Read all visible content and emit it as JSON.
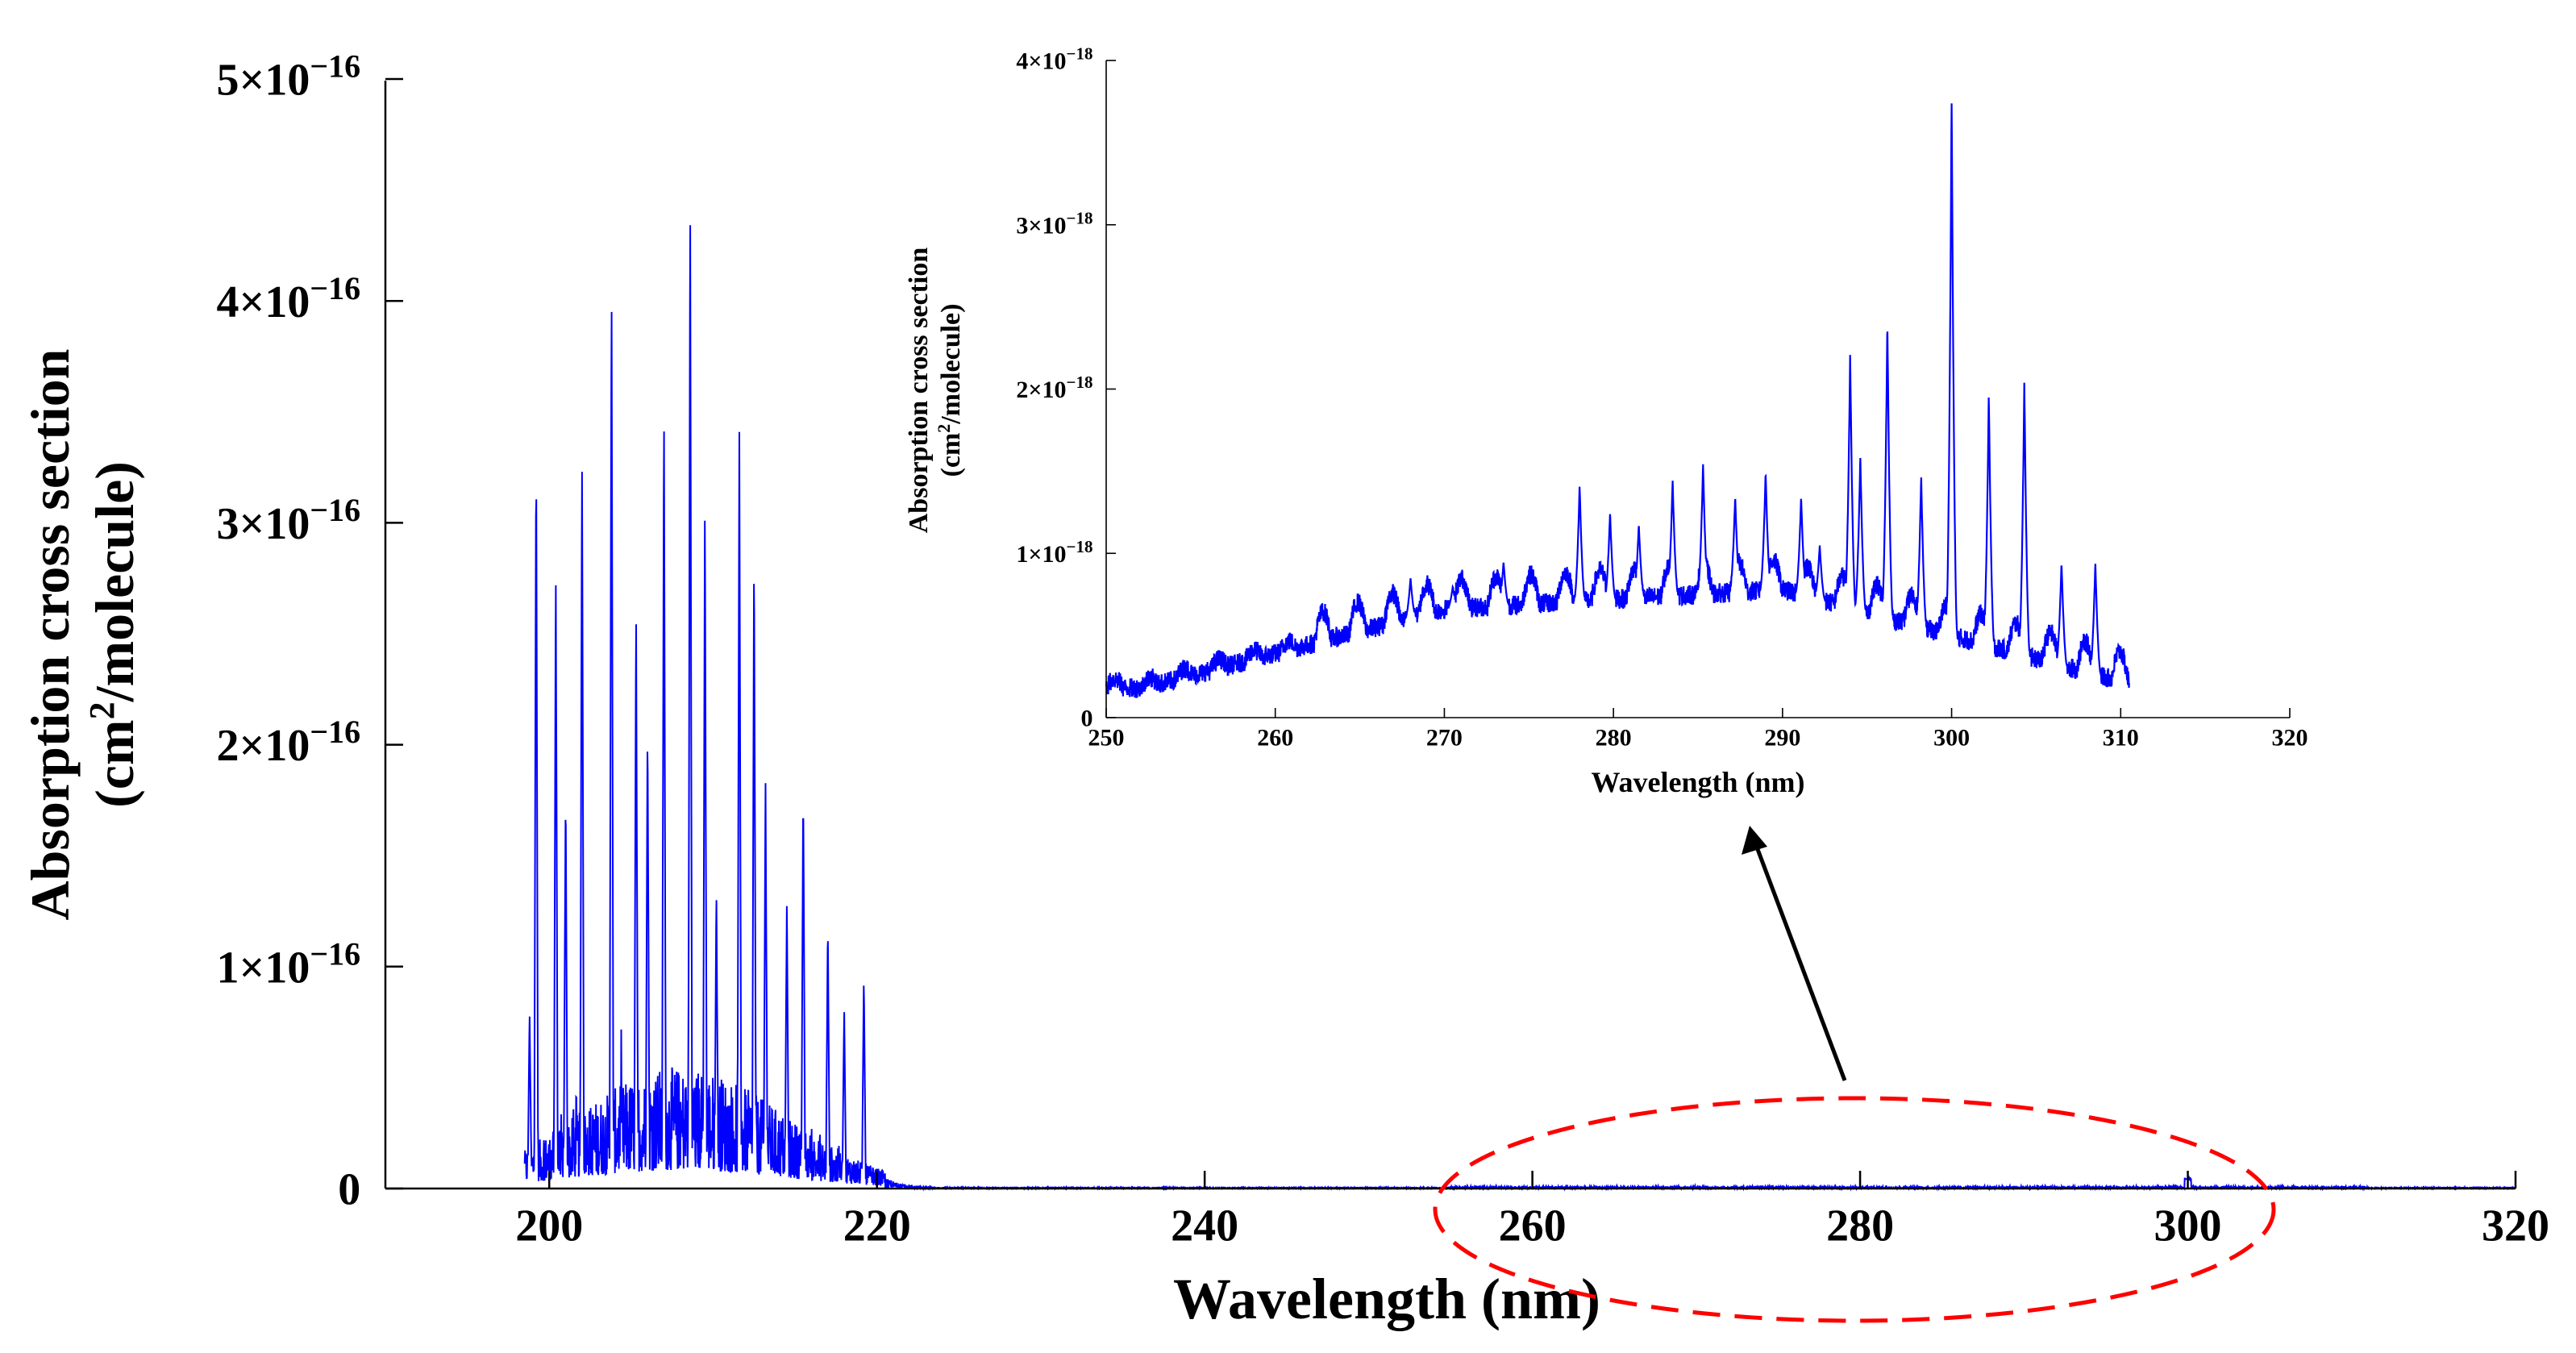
{
  "chart_data": [
    {
      "id": "main",
      "type": "line",
      "title": "",
      "xlabel": "Wavelength (nm)",
      "ylabel_line1": "Absorption cross section",
      "ylabel_line2_pre": "(cm",
      "ylabel_line2_sup": "2",
      "ylabel_line2_post": "/molecule)",
      "xlim": [
        190,
        320
      ],
      "ylim": [
        0,
        5e-16
      ],
      "xticks": [
        200,
        220,
        240,
        260,
        280,
        300,
        320
      ],
      "xtick_labels": [
        "200",
        "220",
        "240",
        "260",
        "280",
        "300",
        "320"
      ],
      "yticks": [
        0,
        1e-16,
        2e-16,
        3e-16,
        4e-16,
        5e-16
      ],
      "ytick_labels": [
        {
          "mant": "0",
          "exp": ""
        },
        {
          "mant": "1×10",
          "exp": "−16"
        },
        {
          "mant": "2×10",
          "exp": "−16"
        },
        {
          "mant": "3×10",
          "exp": "−16"
        },
        {
          "mant": "4×10",
          "exp": "−16"
        },
        {
          "mant": "5×10",
          "exp": "−16"
        }
      ],
      "grid": false,
      "series_color": "#0000ff",
      "spectrum_range": [
        198.5,
        320
      ],
      "peaks": [
        [
          199.2,
          3.35e-16
        ],
        [
          200.4,
          2.8e-16
        ],
        [
          202.0,
          3.32e-16
        ],
        [
          203.8,
          4.14e-16
        ],
        [
          205.3,
          2.63e-16
        ],
        [
          207.0,
          3.56e-16
        ],
        [
          208.6,
          4.52e-16
        ],
        [
          210.2,
          1.35e-16
        ],
        [
          211.6,
          3.46e-16
        ],
        [
          213.2,
          1.85e-16
        ],
        [
          215.5,
          1.82e-16
        ],
        [
          217.0,
          1.2e-16
        ],
        [
          219.2,
          9.5e-17
        ],
        [
          201.0,
          1.8e-16
        ],
        [
          206.0,
          2.1e-16
        ],
        [
          212.5,
          2.9e-16
        ],
        [
          209.5,
          3.12e-16
        ],
        [
          214.5,
          1.3e-16
        ],
        [
          218.0,
          8e-17
        ],
        [
          198.8,
          8e-17
        ]
      ]
    },
    {
      "id": "inset",
      "type": "line",
      "title": "",
      "xlabel": "Wavelength (nm)",
      "ylabel_line1": "Absorption cross section",
      "ylabel_line2_pre": "(cm",
      "ylabel_line2_sup": "2",
      "ylabel_line2_post": "/molecule)",
      "xlim": [
        250,
        320
      ],
      "ylim": [
        0,
        4e-18
      ],
      "xticks": [
        250,
        260,
        270,
        280,
        290,
        300,
        310,
        320
      ],
      "xtick_labels": [
        "250",
        "260",
        "270",
        "280",
        "290",
        "300",
        "310",
        "320"
      ],
      "yticks": [
        0,
        1e-18,
        2e-18,
        3e-18,
        4e-18
      ],
      "ytick_labels": [
        {
          "mant": "0",
          "exp": ""
        },
        {
          "mant": "1×10",
          "exp": "−18"
        },
        {
          "mant": "2×10",
          "exp": "−18"
        },
        {
          "mant": "3×10",
          "exp": "−18"
        },
        {
          "mant": "4×10",
          "exp": "−18"
        }
      ],
      "grid": false,
      "series_color": "#0000ff",
      "spectrum_range": [
        250,
        310.5
      ],
      "peaks": [
        [
          268,
          8.5e-19
        ],
        [
          270.5,
          8e-19
        ],
        [
          273.5,
          9.5e-19
        ],
        [
          278,
          1.42e-18
        ],
        [
          279.8,
          1.25e-18
        ],
        [
          281.5,
          1.18e-18
        ],
        [
          283.5,
          1.45e-18
        ],
        [
          285.3,
          1.55e-18
        ],
        [
          287.2,
          1.35e-18
        ],
        [
          289,
          1.5e-18
        ],
        [
          291.1,
          1.35e-18
        ],
        [
          292.2,
          1.05e-18
        ],
        [
          294,
          2.22e-18
        ],
        [
          294.6,
          1.6e-18
        ],
        [
          296.2,
          2.42e-18
        ],
        [
          298.2,
          1.48e-18
        ],
        [
          300,
          3.8e-18
        ],
        [
          302.2,
          1.98e-18
        ],
        [
          304.3,
          2.05e-18
        ],
        [
          306.5,
          9.5e-19
        ],
        [
          308.5,
          9.5e-19
        ]
      ]
    }
  ],
  "annotation": {
    "ellipse_color": "#ff0000",
    "arrow_color": "#000000"
  }
}
